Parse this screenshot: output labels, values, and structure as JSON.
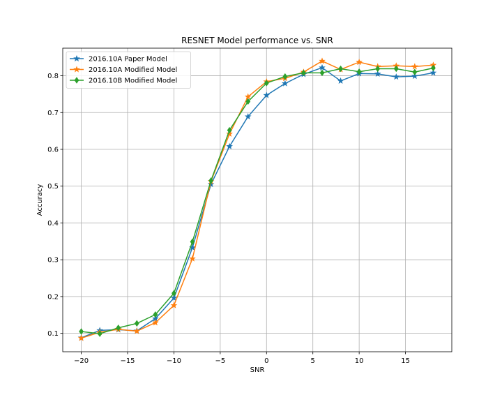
{
  "chart_data": {
    "type": "line",
    "title": "RESNET Model performance vs. SNR",
    "xlabel": "SNR",
    "ylabel": "Accuracy",
    "xlim": [
      -22,
      20
    ],
    "ylim": [
      0.05,
      0.875
    ],
    "xticks": [
      -20,
      -15,
      -10,
      -5,
      0,
      5,
      10,
      15
    ],
    "yticks": [
      0.1,
      0.2,
      0.3,
      0.4,
      0.5,
      0.6,
      0.7,
      0.8
    ],
    "grid": true,
    "legend_position": "top-left",
    "x": [
      -20,
      -18,
      -16,
      -14,
      -12,
      -10,
      -8,
      -6,
      -4,
      -2,
      0,
      2,
      4,
      6,
      8,
      10,
      12,
      14,
      16,
      18
    ],
    "series": [
      {
        "name": "2016.10A Paper Model",
        "color": "#1f77b4",
        "marker": "star",
        "values": [
          0.088,
          0.108,
          0.11,
          0.107,
          0.14,
          0.196,
          0.333,
          0.505,
          0.608,
          0.689,
          0.747,
          0.779,
          0.804,
          0.822,
          0.786,
          0.806,
          0.805,
          0.797,
          0.799,
          0.808
        ]
      },
      {
        "name": "2016.10A Modified Model",
        "color": "#ff7f0e",
        "marker": "star",
        "values": [
          0.087,
          0.103,
          0.111,
          0.106,
          0.129,
          0.176,
          0.303,
          0.513,
          0.642,
          0.743,
          0.784,
          0.793,
          0.81,
          0.84,
          0.817,
          0.837,
          0.825,
          0.827,
          0.825,
          0.829
        ]
      },
      {
        "name": "2016.10B Modified Model",
        "color": "#2ca02c",
        "marker": "diamond",
        "values": [
          0.105,
          0.099,
          0.115,
          0.127,
          0.151,
          0.209,
          0.349,
          0.515,
          0.652,
          0.73,
          0.78,
          0.798,
          0.808,
          0.808,
          0.819,
          0.811,
          0.819,
          0.819,
          0.81,
          0.821
        ]
      }
    ]
  }
}
